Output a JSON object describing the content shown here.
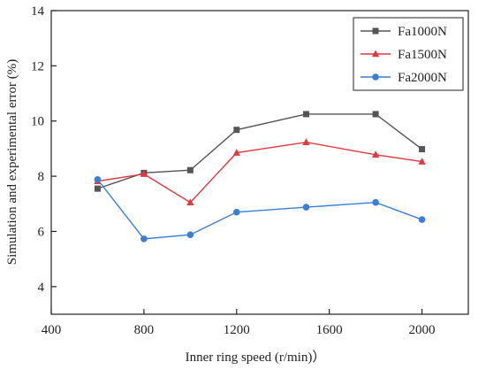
{
  "chart_data": {
    "type": "line",
    "xlabel": "Inner ring speed (r/min)）",
    "ylabel": "Simulation and experimental error (%)",
    "xlim": [
      400,
      2200
    ],
    "ylim": [
      3,
      14
    ],
    "xticks": [
      400,
      800,
      1200,
      1600,
      2000
    ],
    "yticks": [
      4,
      6,
      8,
      10,
      12,
      14
    ],
    "grid": false,
    "legend_position": "top-right",
    "x": [
      600,
      800,
      1000,
      1200,
      1500,
      1800,
      2000
    ],
    "series": [
      {
        "name": "Fa1000N",
        "color": "#555555",
        "marker": "square",
        "values": [
          7.55,
          8.12,
          8.22,
          9.68,
          10.25,
          10.25,
          8.98
        ]
      },
      {
        "name": "Fa1500N",
        "color": "#e0393e",
        "marker": "triangle",
        "values": [
          7.82,
          8.08,
          7.05,
          8.85,
          9.23,
          8.78,
          8.53
        ]
      },
      {
        "name": "Fa2000N",
        "color": "#3a7fd5",
        "marker": "circle",
        "values": [
          7.88,
          5.73,
          5.88,
          6.7,
          6.88,
          7.05,
          6.43
        ]
      }
    ]
  }
}
